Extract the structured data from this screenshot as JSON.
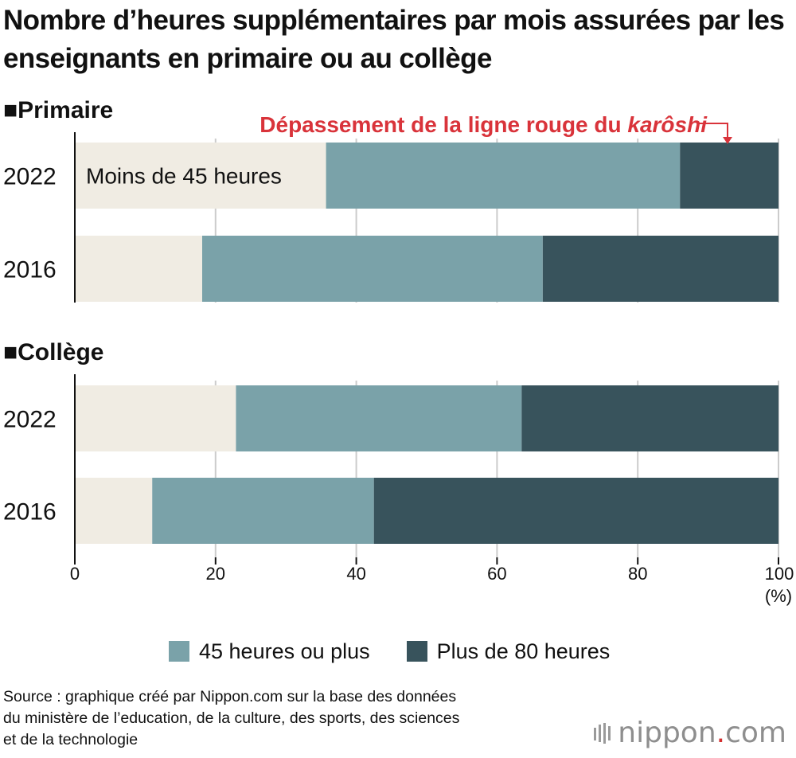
{
  "title": "Nombre d’heures supplémentaires par mois assurées par les enseignants en primaire ou au collège",
  "annotation": {
    "prefix": "Dépassement de la ligne rouge du ",
    "emphasis": "karôshi",
    "color": "#d9333a"
  },
  "inline_label": "Moins de 45 heures",
  "colors": {
    "moins_45": "#f0ece3",
    "plus_45": "#7aa2a9",
    "plus_80": "#38535c",
    "grid": "#cccccc"
  },
  "legend": [
    {
      "label": "45 heures ou plus",
      "color": "#7aa2a9"
    },
    {
      "label": "Plus de 80 heures",
      "color": "#38535c"
    }
  ],
  "source_lines": [
    "Source : graphique créé par Nippon.com sur la base des données",
    "du ministère de l’education, de la culture, des sports, des sciences",
    "et de la technologie"
  ],
  "brand": {
    "name": "nippon",
    "dot": ".",
    "suffix": "com"
  },
  "chart_data": {
    "type": "bar",
    "orientation": "horizontal",
    "stacked": true,
    "xlim": [
      0,
      100
    ],
    "x_ticks": [
      0,
      20,
      40,
      60,
      80,
      100
    ],
    "x_unit": "(%)",
    "grid": true,
    "legend_position": "bottom",
    "groups": [
      {
        "name": "■Primaire",
        "rows": [
          {
            "label": "2022",
            "segments": [
              35.7,
              50.3,
              14.0
            ]
          },
          {
            "label": "2016",
            "segments": [
              18.1,
              48.4,
              33.5
            ]
          }
        ]
      },
      {
        "name": "■Collège",
        "rows": [
          {
            "label": "2022",
            "segments": [
              22.9,
              40.6,
              36.5
            ]
          },
          {
            "label": "2016",
            "segments": [
              11.0,
              31.5,
              57.5
            ]
          }
        ]
      }
    ],
    "segment_names": [
      "Moins de 45 heures",
      "45 heures ou plus",
      "Plus de 80 heures"
    ]
  }
}
